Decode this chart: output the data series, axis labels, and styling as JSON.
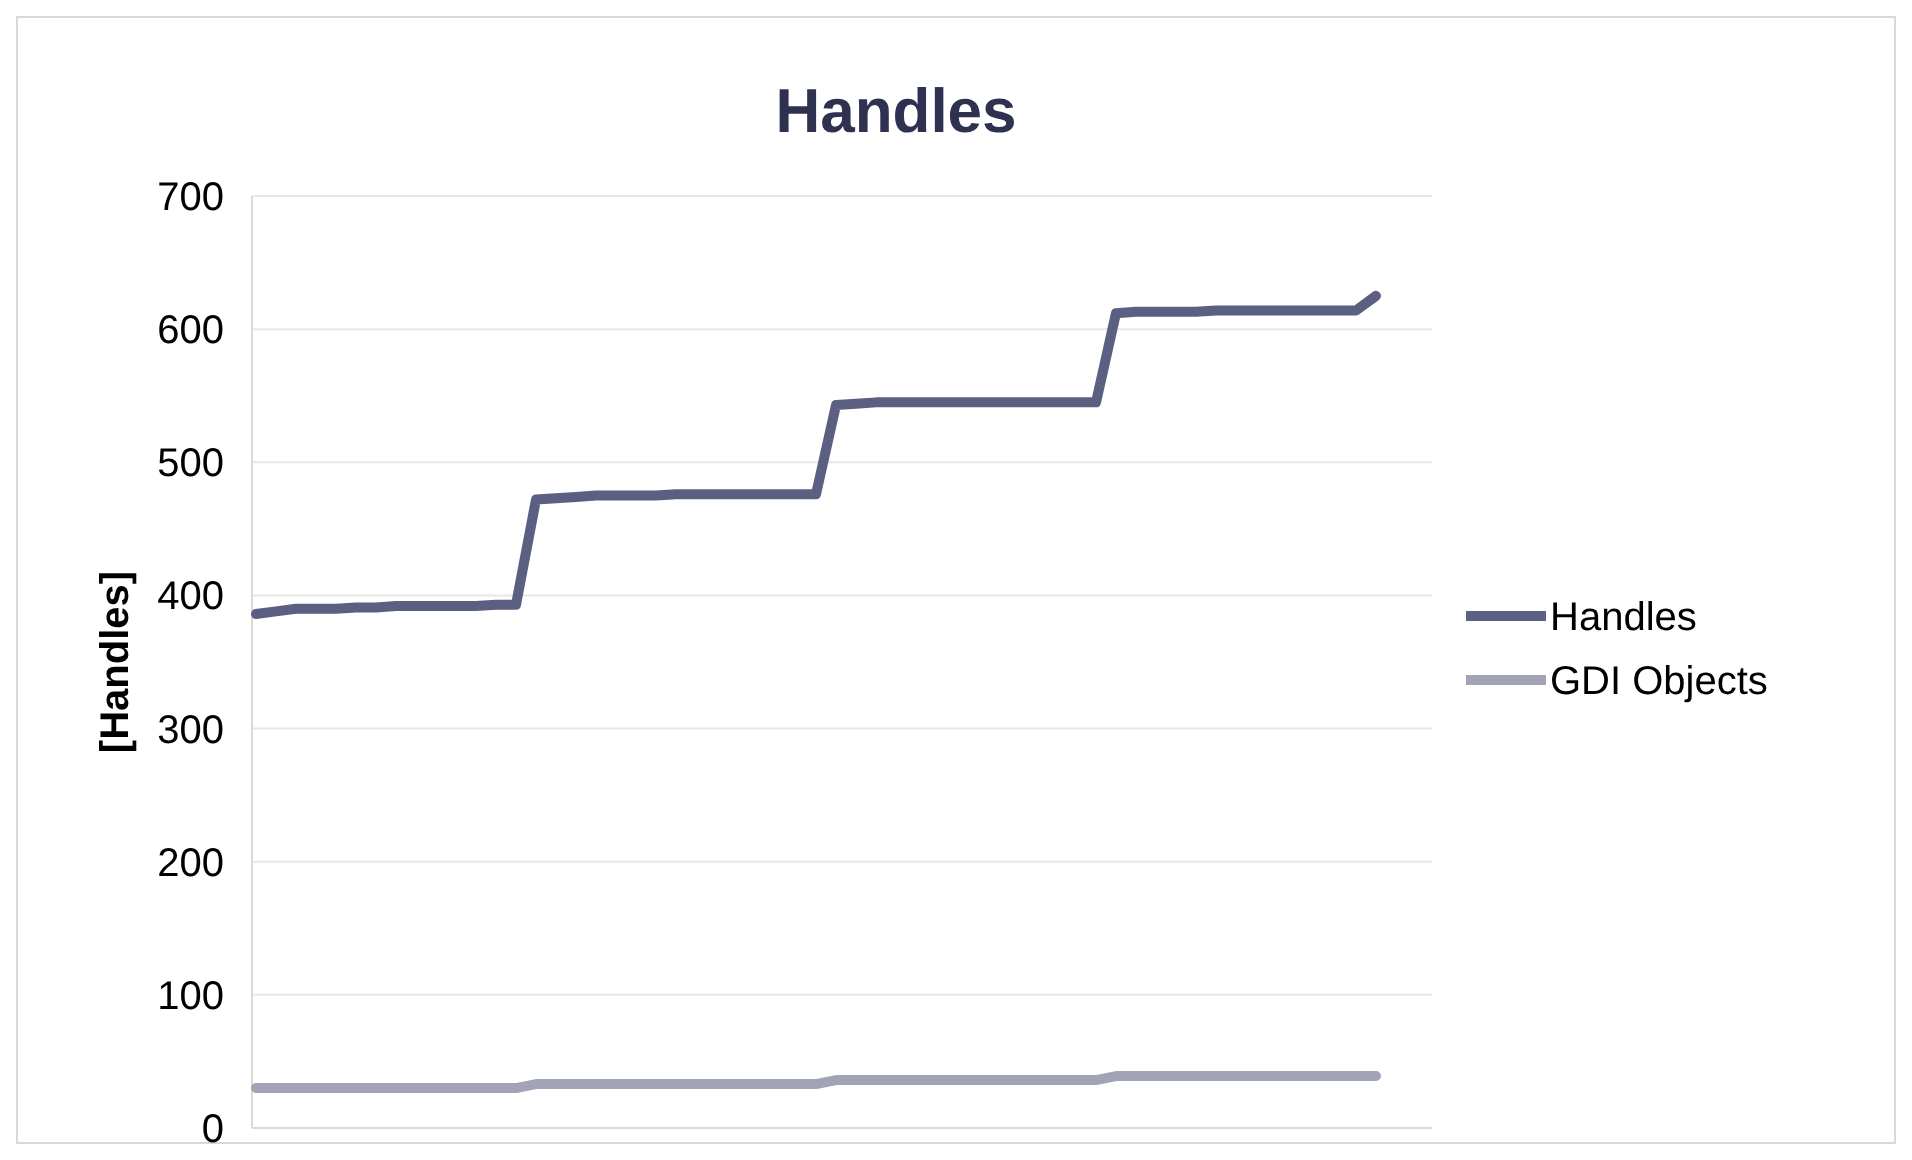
{
  "chart_data": {
    "type": "line",
    "title": "Handles",
    "ylabel": "[Handles]",
    "categories": [
      null,
      null,
      null,
      null,
      null,
      null,
      null,
      null,
      null,
      null,
      null,
      null,
      null,
      null,
      null,
      null,
      null,
      null,
      null,
      null,
      null,
      null,
      null,
      null,
      null,
      null,
      null,
      null,
      null,
      null,
      null,
      null,
      null,
      null,
      null,
      null,
      null,
      null,
      null,
      null,
      null,
      null,
      null,
      null,
      null,
      null,
      null,
      null,
      null,
      null,
      null,
      null,
      null,
      null,
      null,
      null,
      null
    ],
    "series": [
      {
        "name": "Handles",
        "color": "#5b5f82",
        "values": [
          386,
          388,
          390,
          390,
          390,
          391,
          391,
          392,
          392,
          392,
          392,
          392,
          393,
          393,
          472,
          473,
          474,
          475,
          475,
          475,
          475,
          476,
          476,
          476,
          476,
          476,
          476,
          476,
          476,
          543,
          544,
          545,
          545,
          545,
          545,
          545,
          545,
          545,
          545,
          545,
          545,
          545,
          545,
          612,
          613,
          613,
          613,
          613,
          614,
          614,
          614,
          614,
          614,
          614,
          614,
          614,
          625
        ]
      },
      {
        "name": "GDI Objects",
        "color": "#a3a3b8",
        "values": [
          30,
          30,
          30,
          30,
          30,
          30,
          30,
          30,
          30,
          30,
          30,
          30,
          30,
          30,
          33,
          33,
          33,
          33,
          33,
          33,
          33,
          33,
          33,
          33,
          33,
          33,
          33,
          33,
          33,
          36,
          36,
          36,
          36,
          36,
          36,
          36,
          36,
          36,
          36,
          36,
          36,
          36,
          36,
          39,
          39,
          39,
          39,
          39,
          39,
          39,
          39,
          39,
          39,
          39,
          39,
          39,
          39
        ]
      }
    ],
    "ylim": [
      0,
      700
    ],
    "yticks": [
      0,
      100,
      200,
      300,
      400,
      500,
      600,
      700
    ],
    "grid": "y",
    "legend": "right",
    "line_style": "solid",
    "marker": "none"
  }
}
